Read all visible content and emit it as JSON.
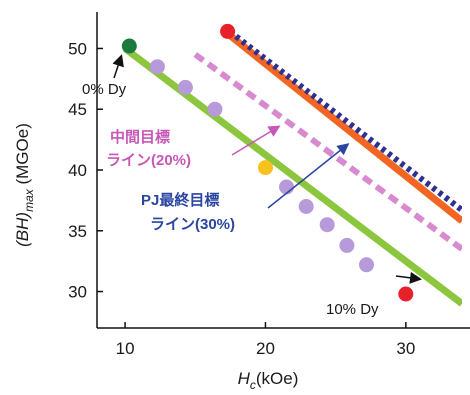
{
  "chart_data": {
    "type": "line",
    "xlabel": "Hc(kOe)",
    "ylabel": "(BH)max (MGOe)",
    "xlim": [
      8,
      34
    ],
    "ylim": [
      27,
      53
    ],
    "x_ticks": [
      10,
      20,
      30
    ],
    "y_ticks": [
      30,
      35,
      40,
      45,
      50
    ],
    "series": [
      {
        "name": "green",
        "style": "solid",
        "color": "#8cc63f",
        "x": [
          10,
          34
        ],
        "y": [
          50,
          29
        ]
      },
      {
        "name": "orange",
        "style": "solid",
        "color": "#f26522",
        "x": [
          17,
          34
        ],
        "y": [
          51.5,
          35.8
        ]
      },
      {
        "name": "blue-dotted",
        "style": "dotted",
        "color": "#2e3192",
        "x": [
          17,
          34
        ],
        "y": [
          51.8,
          36.7
        ]
      },
      {
        "name": "pink-dashed",
        "style": "dashed",
        "color": "#d88ad0",
        "x": [
          15,
          34
        ],
        "y": [
          49.5,
          33.5
        ]
      }
    ],
    "points": [
      {
        "x": 10.3,
        "y": 50.2,
        "color": "#1a7a3c"
      },
      {
        "x": 12.3,
        "y": 48.5,
        "color": "#b79ad9"
      },
      {
        "x": 14.3,
        "y": 46.8,
        "color": "#b79ad9"
      },
      {
        "x": 16.4,
        "y": 45.0,
        "color": "#b79ad9"
      },
      {
        "x": 20.0,
        "y": 40.2,
        "color": "#f7c21d"
      },
      {
        "x": 21.5,
        "y": 38.6,
        "color": "#b79ad9"
      },
      {
        "x": 22.9,
        "y": 37.0,
        "color": "#b79ad9"
      },
      {
        "x": 24.4,
        "y": 35.5,
        "color": "#b79ad9"
      },
      {
        "x": 25.8,
        "y": 33.8,
        "color": "#b79ad9"
      },
      {
        "x": 27.2,
        "y": 32.2,
        "color": "#b79ad9"
      },
      {
        "x": 30.0,
        "y": 29.8,
        "color": "#e8202a"
      },
      {
        "x": 17.3,
        "y": 51.4,
        "color": "#e8202a"
      }
    ],
    "annotations": {
      "dy0": "0% Dy",
      "dy10": "10% Dy",
      "mid_target_l1": "中間目標",
      "mid_target_l2": "ライン(20%)",
      "pj_target_l1": "PJ最終目標",
      "pj_target_l2": "ライン(30%)"
    },
    "colors": {
      "axis": "#111111",
      "pink_text": "#c858b8",
      "blue_text": "#2a46a0"
    }
  }
}
